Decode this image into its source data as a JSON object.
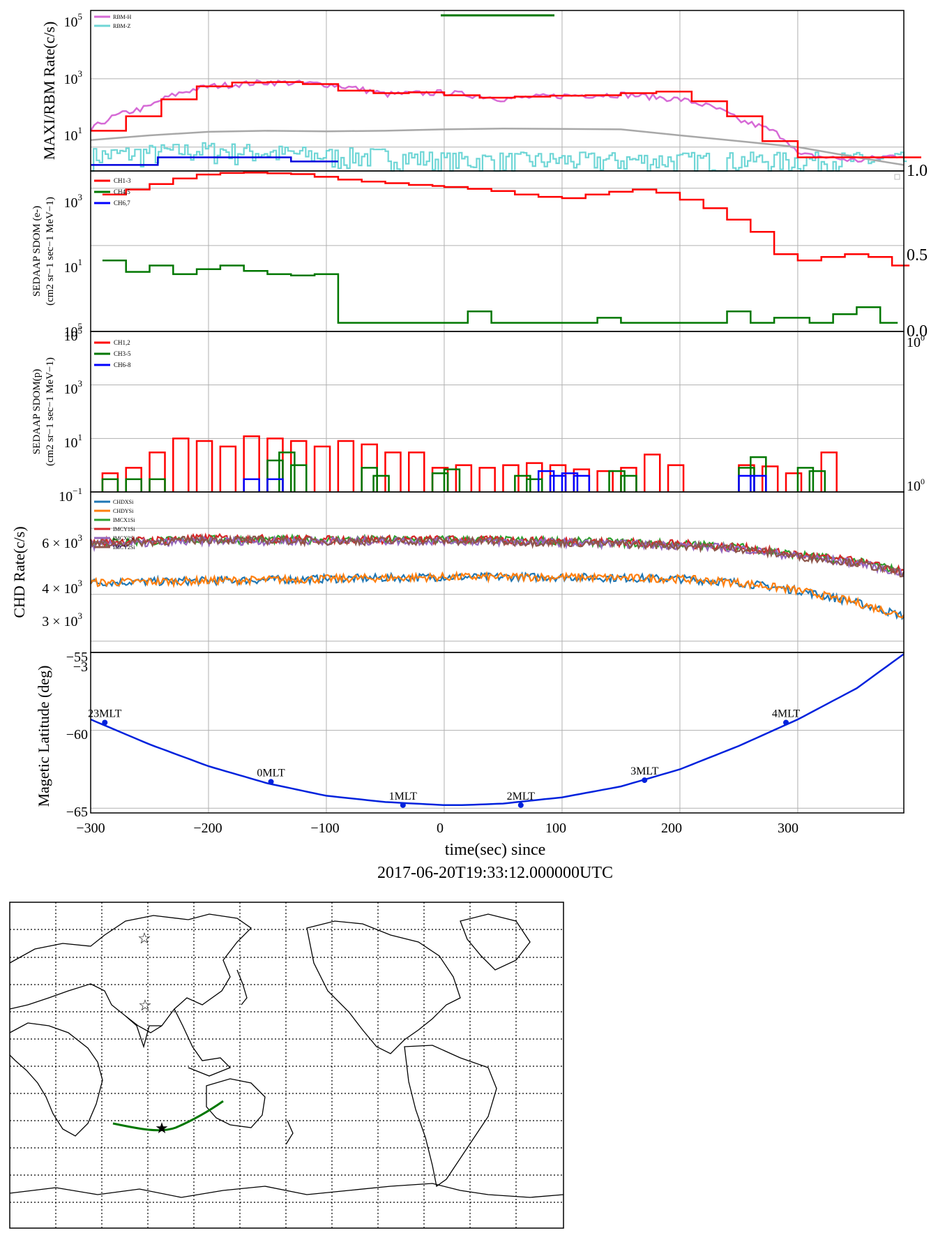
{
  "colors": {
    "rbm_h": "#d66ad6",
    "rbm_z": "#6fd6d6",
    "maxi_red": "#ff0000",
    "rbm_blue": "#0000dd",
    "bg_gray": "#a8a8a8",
    "green": "#007700",
    "red": "#ff0000",
    "blue": "#0000ff",
    "grid": "#b0b0b0",
    "chd_blue": "#1f77b4",
    "chd_orange": "#ff7f0e",
    "chd_green": "#2ca02c",
    "chd_red": "#d62728",
    "chd_purple": "#9467bd",
    "chd_brown": "#8c564b",
    "track": "#0022dd"
  },
  "xaxis": {
    "label": "time(sec) since",
    "epoch": "2017-06-20T19:33:12.000000UTC",
    "ticks": [
      "−300",
      "−200",
      "−100",
      "0",
      "100",
      "200",
      "300"
    ]
  },
  "panel1": {
    "ylabel": "MAXI/RBM Rate(c/s)",
    "ytick_base": "10",
    "ytick_exps": [
      "1",
      "3",
      "5"
    ],
    "legend": [
      "RBM-H",
      "RBM-Z"
    ],
    "right_ticks": [
      "1.0"
    ]
  },
  "panel2": {
    "ylabel_line1": "SEDAAP SDOM (e-)",
    "ylabel_line2": "(cm2 sr−1 sec−1 MeV−1)",
    "ytick_base": "10",
    "ytick_exps": [
      "5",
      "1",
      "3"
    ],
    "legend": [
      "CH1-3",
      "CH4,5",
      "CH6,7"
    ],
    "right_ticks": [
      "0.0",
      "0.5"
    ]
  },
  "panel3": {
    "ylabel_line1": "SEDAAP SDOM(p)",
    "ylabel_line2": "(cm2 sr−1 sec−1 MeV−1)",
    "ytick_base": "10",
    "ytick_exps": [
      "−1",
      "1",
      "3",
      "5"
    ],
    "legend": [
      "CH1,2",
      "CH3-5",
      "CH6-8"
    ],
    "right_ticks": [
      "10",
      "10"
    ],
    "right_tick_exps": [
      "0",
      "0"
    ]
  },
  "panel4": {
    "ylabel": "CHD Rate(c/s)",
    "yticks": [
      "3 × 10",
      "4 × 10",
      "6 × 10"
    ],
    "ytick_exp": "3",
    "legend": [
      "CHDXSi",
      "CHDYSi",
      "IMCX1Si",
      "IMCY1Si",
      "IMCX2Si",
      "IMCY2Si"
    ],
    "top_clip_ticks": [
      "−55",
      "−3"
    ]
  },
  "panel5": {
    "ylabel": "Magetic Latitude  (deg)",
    "yticks": [
      "−60",
      "−65"
    ],
    "mlt_labels": [
      "23MLT",
      "0MLT",
      "1MLT",
      "2MLT",
      "3MLT",
      "4MLT"
    ]
  },
  "chart_data": [
    {
      "type": "line",
      "title": "",
      "ylabel": "MAXI/RBM Rate(c/s)",
      "xlabel": "time(sec) since 2017-06-20T19:33:12.000000UTC",
      "yscale": "log",
      "ylim": [
        2,
        100000
      ],
      "xlim": [
        -300,
        390
      ],
      "grid": true,
      "legend_position": "upper-left",
      "series": [
        {
          "name": "RBM-H",
          "x": [
            -300,
            -250,
            -200,
            -150,
            -100,
            -50,
            0,
            50,
            100,
            150,
            200,
            250,
            300,
            350,
            390
          ],
          "values": [
            30,
            150,
            600,
            800,
            700,
            350,
            400,
            260,
            320,
            350,
            250,
            60,
            6,
            4,
            6
          ]
        },
        {
          "name": "RBM-Z",
          "x": [
            -300,
            -250,
            -200,
            -150,
            -100,
            -50,
            0,
            50,
            100,
            150,
            200,
            250,
            300,
            350,
            390
          ],
          "values": [
            4,
            5,
            6,
            5,
            4,
            4,
            3,
            3,
            3,
            3,
            3,
            3,
            3,
            3,
            3
          ]
        },
        {
          "x": [
            -300,
            -270,
            -240,
            -210,
            -180,
            -150,
            -120,
            -90,
            -60,
            -30,
            0,
            30,
            60,
            90,
            120,
            150,
            180,
            210,
            240,
            270,
            300,
            330,
            360,
            390
          ],
          "values": [
            30,
            80,
            250,
            600,
            780,
            800,
            700,
            450,
            380,
            400,
            330,
            280,
            300,
            320,
            330,
            380,
            420,
            220,
            80,
            15,
            5,
            5,
            5,
            5
          ]
        },
        {
          "x": [
            -300,
            -250,
            -200,
            -150,
            -100,
            -50,
            0,
            50,
            100,
            150,
            200,
            250,
            300,
            350,
            390
          ],
          "values": [
            16,
            22,
            28,
            30,
            29,
            30,
            33,
            35,
            34,
            33,
            22,
            15,
            10,
            5,
            3
          ]
        },
        {
          "x": [
            -300,
            -243,
            -243,
            -130,
            -130,
            -90
          ],
          "values": [
            3,
            3,
            5,
            5,
            3.8,
            3.8
          ]
        }
      ],
      "bars_green_x": [
        0,
        97
      ]
    },
    {
      "type": "line",
      "title": "",
      "ylabel": "SEDAAP SDOM (e-)",
      "yscale": "log",
      "ylim": [
        0.01,
        4000
      ],
      "grid": true,
      "legend_position": "upper-left",
      "series": [
        {
          "name": "CH1-3",
          "x": [
            -290,
            -270,
            -250,
            -230,
            -210,
            -190,
            -170,
            -150,
            -130,
            -110,
            -90,
            -70,
            -50,
            -30,
            -10,
            0,
            20,
            40,
            60,
            80,
            100,
            120,
            140,
            160,
            180,
            200,
            220,
            240,
            260,
            280,
            300,
            320,
            340,
            360,
            380
          ],
          "values": [
            600,
            900,
            1400,
            2200,
            3000,
            3400,
            3500,
            3300,
            3100,
            2500,
            2000,
            1700,
            1500,
            1300,
            1200,
            1100,
            950,
            800,
            600,
            500,
            450,
            600,
            750,
            900,
            700,
            400,
            200,
            80,
            30,
            5,
            3,
            4,
            5,
            4,
            2
          ]
        },
        {
          "name": "CH4,5",
          "x": [
            -290,
            -270,
            -250,
            -230,
            -210,
            -190,
            -170,
            -150,
            -130,
            -110,
            -90,
            -70,
            -50,
            -30,
            -10,
            20,
            40,
            60,
            80,
            100,
            130,
            150,
            240,
            260,
            280,
            310,
            330,
            350,
            370
          ],
          "values": [
            3,
            1.2,
            2,
            1,
            1.5,
            2,
            1.3,
            1,
            0.9,
            1,
            0.02,
            0.02,
            0.02,
            0.02,
            0.02,
            0.05,
            0.02,
            0.02,
            0.02,
            0.02,
            0.03,
            0.02,
            0.05,
            0.02,
            0.03,
            0.02,
            0.04,
            0.07,
            0.02
          ]
        },
        {
          "name": "CH6,7",
          "x": [],
          "values": []
        }
      ]
    },
    {
      "type": "line",
      "title": "",
      "ylabel": "SEDAAP SDOM(p)",
      "yscale": "log",
      "ylim": [
        0.1,
        100000
      ],
      "grid": true,
      "legend_position": "upper-left",
      "series": [
        {
          "name": "CH1,2",
          "x": [
            -290,
            -270,
            -250,
            -230,
            -210,
            -190,
            -170,
            -150,
            -130,
            -110,
            -90,
            -70,
            -50,
            -30,
            -10,
            10,
            30,
            50,
            70,
            90,
            110,
            130,
            150,
            170,
            190,
            250,
            270,
            290,
            320
          ],
          "values": [
            0.5,
            0.8,
            3,
            10,
            8,
            5,
            12,
            10,
            8,
            5,
            8,
            6,
            3,
            3,
            0.8,
            1,
            0.8,
            1,
            1.2,
            1,
            0.7,
            0.6,
            0.8,
            2.5,
            1,
            1,
            0.9,
            0.5,
            3
          ]
        },
        {
          "name": "CH3-5",
          "x": [
            -290,
            -270,
            -250,
            -150,
            -140,
            -130,
            -70,
            -60,
            -10,
            0,
            60,
            70,
            140,
            150,
            250,
            260,
            300,
            310
          ],
          "values": [
            0.3,
            0.3,
            0.3,
            1.5,
            3,
            1,
            0.8,
            0.4,
            0.5,
            0.7,
            0.4,
            0.3,
            0.6,
            0.4,
            0.8,
            2,
            0.8,
            0.6
          ]
        },
        {
          "name": "CH6-8",
          "x": [
            -170,
            -150,
            80,
            90,
            100,
            110,
            250,
            260
          ],
          "values": [
            0.3,
            0.3,
            0.6,
            0.4,
            0.5,
            0.4,
            0.4,
            0.4
          ]
        }
      ]
    },
    {
      "type": "line",
      "title": "",
      "ylabel": "CHD Rate(c/s)",
      "yscale": "log",
      "ylim": [
        2800,
        7500
      ],
      "grid": true,
      "legend_position": "upper-left",
      "series": [
        {
          "name": "CHDXSi",
          "x": [
            -300,
            -200,
            -100,
            0,
            100,
            200,
            250,
            300,
            350,
            390
          ],
          "values": [
            4300,
            4350,
            4400,
            4450,
            4450,
            4400,
            4300,
            4100,
            3800,
            3500
          ]
        },
        {
          "name": "CHDYSi",
          "x": [
            -300,
            -200,
            -100,
            0,
            100,
            200,
            250,
            300,
            350,
            390
          ],
          "values": [
            4300,
            4350,
            4400,
            4450,
            4450,
            4400,
            4300,
            4100,
            3800,
            3500
          ]
        },
        {
          "name": "IMCX1Si",
          "x": [
            -300,
            -200,
            -100,
            0,
            100,
            200,
            250,
            300,
            350,
            390
          ],
          "values": [
            5500,
            5600,
            5600,
            5600,
            5550,
            5450,
            5350,
            5100,
            4900,
            4600
          ]
        },
        {
          "name": "IMCY1Si",
          "x": [
            -300,
            -200,
            -100,
            0,
            100,
            200,
            250,
            300,
            350,
            390
          ],
          "values": [
            5500,
            5650,
            5600,
            5600,
            5550,
            5450,
            5350,
            5100,
            4900,
            4600
          ]
        },
        {
          "name": "IMCX2Si",
          "x": [
            -300,
            -200,
            -100,
            0,
            100,
            200,
            250,
            300,
            350,
            390
          ],
          "values": [
            5400,
            5550,
            5550,
            5550,
            5500,
            5400,
            5300,
            5050,
            4850,
            4550
          ]
        },
        {
          "name": "IMCY2Si",
          "x": [
            -300,
            -200,
            -100,
            0,
            100,
            200,
            250,
            300,
            350,
            390
          ],
          "values": [
            5450,
            5600,
            5550,
            5550,
            5500,
            5400,
            5300,
            5050,
            4850,
            4550
          ]
        }
      ]
    },
    {
      "type": "line",
      "title": "",
      "ylabel": "Magetic Latitude  (deg)",
      "ylim": [
        -65.3,
        -55
      ],
      "grid": true,
      "series": [
        {
          "x": [
            -300,
            -250,
            -200,
            -150,
            -100,
            -50,
            0,
            15,
            50,
            100,
            150,
            200,
            250,
            300,
            350,
            390
          ],
          "values": [
            -59.3,
            -60.9,
            -62.3,
            -63.4,
            -64.2,
            -64.6,
            -64.8,
            -64.8,
            -64.7,
            -64.3,
            -63.6,
            -62.5,
            -61.0,
            -59.3,
            -57.3,
            -55.1
          ]
        }
      ],
      "mlt_points": [
        {
          "label": "23MLT",
          "x": -288,
          "y": -59.5
        },
        {
          "label": "0MLT",
          "x": -147,
          "y": -63.3
        },
        {
          "label": "1MLT",
          "x": -35,
          "y": -64.8
        },
        {
          "label": "2MLT",
          "x": 65,
          "y": -64.8
        },
        {
          "label": "3MLT",
          "x": 170,
          "y": -63.2
        },
        {
          "label": "4MLT",
          "x": 290,
          "y": -59.5
        }
      ]
    }
  ]
}
